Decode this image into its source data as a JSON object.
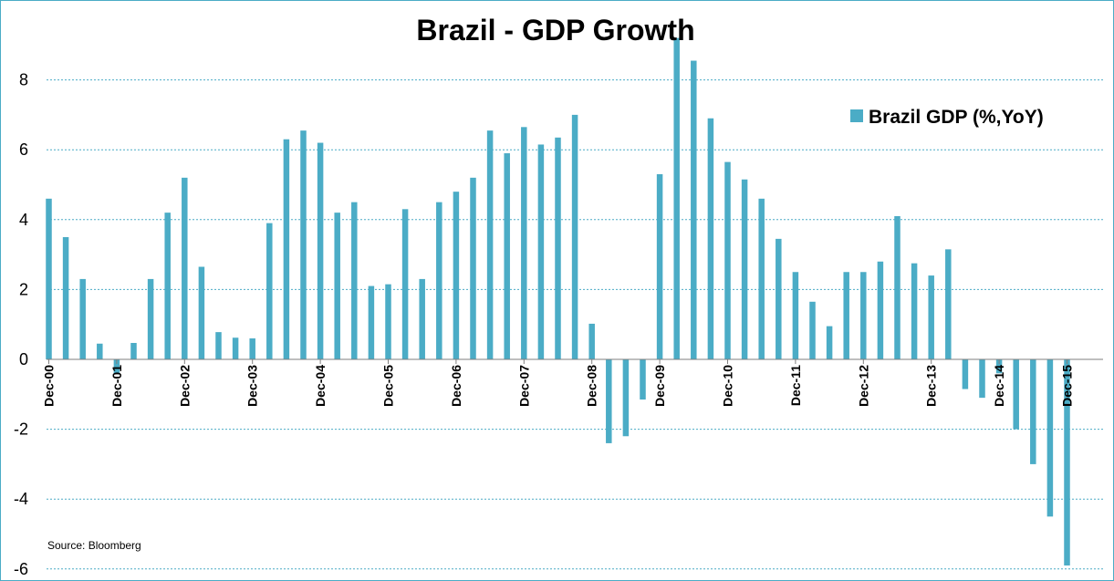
{
  "chart_data": {
    "type": "bar",
    "title": "Brazil - GDP Growth",
    "xlabel": "",
    "ylabel": "",
    "ylim": [
      -6,
      9
    ],
    "yticks": [
      8,
      6,
      4,
      2,
      0,
      -2,
      -4,
      -6
    ],
    "grid": true,
    "legend_position": "top-right",
    "source": "Source: Bloomberg",
    "bar_color": "#4bacc6",
    "x_tick_labels": [
      {
        "index": 0,
        "label": "Dec-00"
      },
      {
        "index": 4,
        "label": "Dec-01"
      },
      {
        "index": 8,
        "label": "Dec-02"
      },
      {
        "index": 12,
        "label": "Dec-03"
      },
      {
        "index": 16,
        "label": "Dec-04"
      },
      {
        "index": 20,
        "label": "Dec-05"
      },
      {
        "index": 24,
        "label": "Dec-06"
      },
      {
        "index": 28,
        "label": "Dec-07"
      },
      {
        "index": 32,
        "label": "Dec-08"
      },
      {
        "index": 36,
        "label": "Dec-09"
      },
      {
        "index": 40,
        "label": "Dec-10"
      },
      {
        "index": 44,
        "label": "Dec-11"
      },
      {
        "index": 48,
        "label": "Dec-12"
      },
      {
        "index": 52,
        "label": "Dec-13"
      },
      {
        "index": 56,
        "label": "Dec-14"
      },
      {
        "index": 60,
        "label": "Dec-15"
      }
    ],
    "series": [
      {
        "name": "Brazil GDP (%,YoY)",
        "values": [
          4.6,
          3.5,
          2.3,
          0.45,
          -0.4,
          0.47,
          2.3,
          4.2,
          5.2,
          2.65,
          0.78,
          0.62,
          0.6,
          3.9,
          6.3,
          6.55,
          6.2,
          4.2,
          4.5,
          2.1,
          2.15,
          4.3,
          2.3,
          4.5,
          4.8,
          5.2,
          6.55,
          5.9,
          6.65,
          6.15,
          6.35,
          7.0,
          1.02,
          -2.4,
          -2.2,
          -1.15,
          5.3,
          9.2,
          8.55,
          6.9,
          5.65,
          5.15,
          4.6,
          3.45,
          2.5,
          1.65,
          0.95,
          2.5,
          2.5,
          2.8,
          4.1,
          2.75,
          2.4,
          3.15,
          -0.85,
          -1.1,
          -0.4,
          -2.0,
          -3.0,
          -4.5,
          -5.9
        ]
      }
    ]
  }
}
